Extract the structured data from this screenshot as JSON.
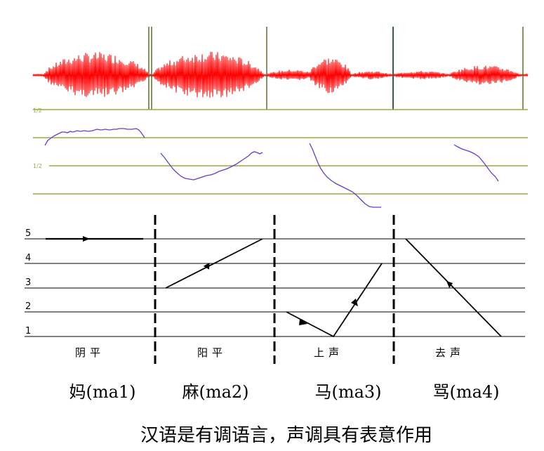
{
  "waveform": {
    "color": "#ff0000",
    "baseline_color": "#cc0000",
    "divider_color": "#5a6e2a"
  },
  "pitch_panel": {
    "line_color": "#9aaa3c",
    "contour_color": "#6a3acb",
    "labels": [
      "1/2",
      "1/2"
    ]
  },
  "tone_chart": {
    "levels": [
      "5",
      "4",
      "3",
      "2",
      "1"
    ],
    "tones": [
      {
        "name": "阴平",
        "caption": "妈(ma1)",
        "contour": [
          5,
          5
        ]
      },
      {
        "name": "阳平",
        "caption": "麻(ma2)",
        "contour": [
          3,
          5
        ]
      },
      {
        "name": "上声",
        "caption": "马(ma3)",
        "contour": [
          2,
          1,
          4
        ]
      },
      {
        "name": "去声",
        "caption": "骂(ma4)",
        "contour": [
          5,
          1
        ]
      }
    ]
  },
  "footer": {
    "sentence": "汉语是有调语言，声调具有表意作用"
  }
}
